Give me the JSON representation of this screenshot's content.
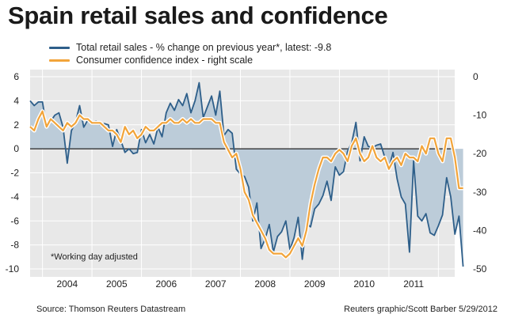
{
  "title": "Spain retail sales and confidence",
  "legend": {
    "retail": "Total retail sales - % change on previous year*, latest: -9.8",
    "confidence": "Consumer confidence index - right scale"
  },
  "note": "*Working day adjusted",
  "source": "Source: Thomson Reuters Datastream",
  "credit": "Reuters graphic/Scott Barber 5/29/2012",
  "colors": {
    "retail_line": "#2e5f8a",
    "retail_fill": "#bcccd9",
    "confidence": "#f2a43a",
    "confidence_halo": "#ffffff",
    "zero_line": "#222222"
  },
  "chart_data": {
    "type": "area",
    "x_tick_labels": [
      "2004",
      "2005",
      "2006",
      "2007",
      "2008",
      "2009",
      "2010",
      "2011"
    ],
    "x_range": [
      2003.75,
      2012.33
    ],
    "left_axis": {
      "ticks": [
        "6",
        "4",
        "2",
        "0",
        "-2",
        "-4",
        "-6",
        "-8",
        "-10"
      ],
      "range": [
        -10,
        6
      ]
    },
    "right_axis": {
      "ticks": [
        "0",
        "-10",
        "-20",
        "-30",
        "-40",
        "-50"
      ],
      "range": [
        -50,
        0
      ]
    },
    "series": [
      {
        "name": "Total retail sales - % change on previous year*",
        "axis": "left",
        "style": "area",
        "start": 2003.75,
        "step": 0.08333,
        "values": [
          4.0,
          3.6,
          3.9,
          3.9,
          1.8,
          2.3,
          2.8,
          3.0,
          1.8,
          -1.2,
          1.5,
          2.2,
          3.6,
          1.8,
          2.4,
          2.2,
          2.3,
          2.0,
          2.1,
          2.0,
          0.2,
          1.6,
          0.7,
          -0.3,
          0.0,
          -0.4,
          -0.3,
          1.6,
          0.5,
          1.2,
          0.4,
          1.8,
          1.0,
          3.0,
          3.8,
          3.2,
          4.1,
          3.6,
          4.6,
          3.0,
          4.0,
          5.5,
          2.6,
          3.5,
          4.4,
          2.8,
          4.8,
          1.1,
          1.6,
          1.3,
          -1.7,
          -2.1,
          -2.3,
          -3.2,
          -6.0,
          -4.5,
          -8.3,
          -7.5,
          -6.3,
          -8.6,
          -7.3,
          -6.9,
          -6.0,
          -8.4,
          -7.4,
          -5.7,
          -9.2,
          -6.2,
          -6.5,
          -5.0,
          -4.6,
          -3.9,
          -2.7,
          -4.3,
          -1.5,
          -2.2,
          -1.9,
          -0.2,
          0.5,
          2.2,
          -1.0,
          1.0,
          0.2,
          0.1,
          0.3,
          0.4,
          -0.7,
          -1.6,
          -0.3,
          -2.5,
          -4.0,
          -4.6,
          -8.6,
          -1.0,
          -5.6,
          -6.0,
          -5.4,
          -7.0,
          -7.2,
          -6.4,
          -5.5,
          -2.4,
          -4.0,
          -7.1,
          -5.6,
          -9.8
        ]
      },
      {
        "name": "Consumer confidence index - right scale",
        "axis": "right",
        "style": "line",
        "start": 2003.75,
        "step": 0.08333,
        "values": [
          -13,
          -14,
          -11,
          -9,
          -13,
          -11,
          -12,
          -13,
          -14,
          -12,
          -13,
          -12,
          -10,
          -11,
          -11,
          -12,
          -12,
          -12,
          -13,
          -14,
          -14,
          -15,
          -17,
          -13,
          -15,
          -14,
          -16,
          -15,
          -13,
          -14,
          -14,
          -13,
          -12,
          -12,
          -11,
          -12,
          -12,
          -11,
          -12,
          -11,
          -12,
          -12,
          -11,
          -11,
          -11,
          -12,
          -12,
          -17,
          -19,
          -21,
          -20,
          -24,
          -30,
          -32,
          -36,
          -38,
          -40,
          -42,
          -45,
          -46,
          -46,
          -46,
          -47,
          -46,
          -44,
          -42,
          -44,
          -40,
          -33,
          -28,
          -24,
          -21,
          -21,
          -22,
          -20,
          -19,
          -20,
          -22,
          -18,
          -16,
          -20,
          -22,
          -21,
          -18,
          -21,
          -22,
          -21,
          -24,
          -22,
          -21,
          -23,
          -20,
          -21,
          -21,
          -22,
          -18,
          -20,
          -16,
          -16,
          -20,
          -22,
          -16,
          -16,
          -21,
          -29,
          -29
        ]
      }
    ]
  }
}
